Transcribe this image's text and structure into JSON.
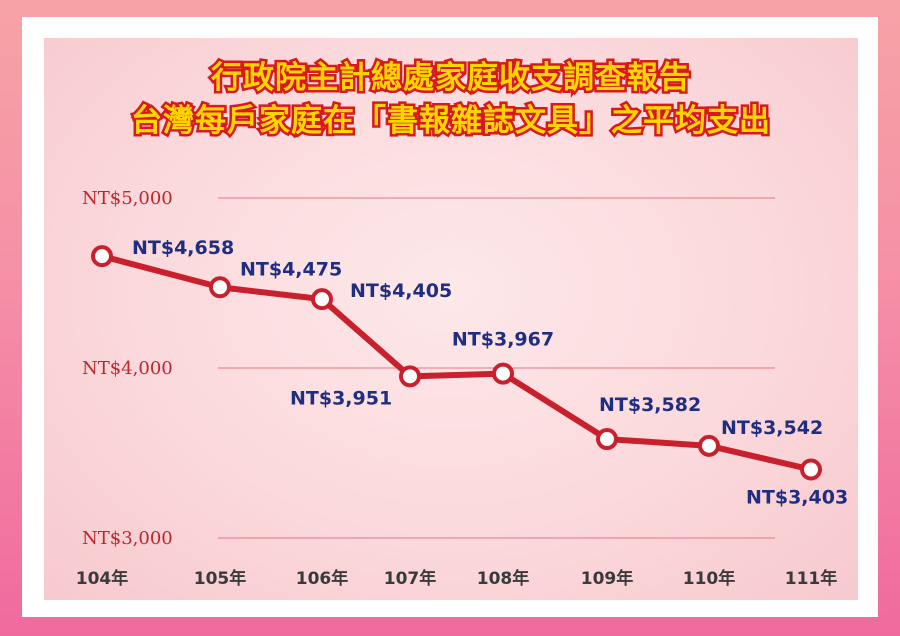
{
  "title_line1": "行政院主計總處家庭收支調查報告",
  "title_line2": "台灣每戶家庭在「書報雜誌文具」之平均支出",
  "colors": {
    "line": "#c8202d",
    "label": "#1f2e80",
    "tick": "#c0252d",
    "title_fill": "#ffd500",
    "title_stroke": "#d71920"
  },
  "chart_data": {
    "type": "line",
    "title": "台灣每戶家庭在「書報雜誌文具」之平均支出",
    "categories": [
      "104年",
      "105年",
      "106年",
      "107年",
      "108年",
      "109年",
      "110年",
      "111年"
    ],
    "series": [
      {
        "values": [
          4658,
          4475,
          4405,
          3951,
          3967,
          3582,
          3542,
          3403
        ]
      }
    ],
    "data_labels": [
      "NT$4,658",
      "NT$4,475",
      "NT$4,405",
      "NT$3,951",
      "NT$3,967",
      "NT$3,582",
      "NT$3,542",
      "NT$3,403"
    ],
    "yticks": [
      3000,
      4000,
      5000
    ],
    "ytick_labels": [
      "NT$3,000",
      "NT$4,000",
      "NT$5,000"
    ],
    "ylim": [
      3000,
      5000
    ],
    "grid": true,
    "legend": "none"
  }
}
